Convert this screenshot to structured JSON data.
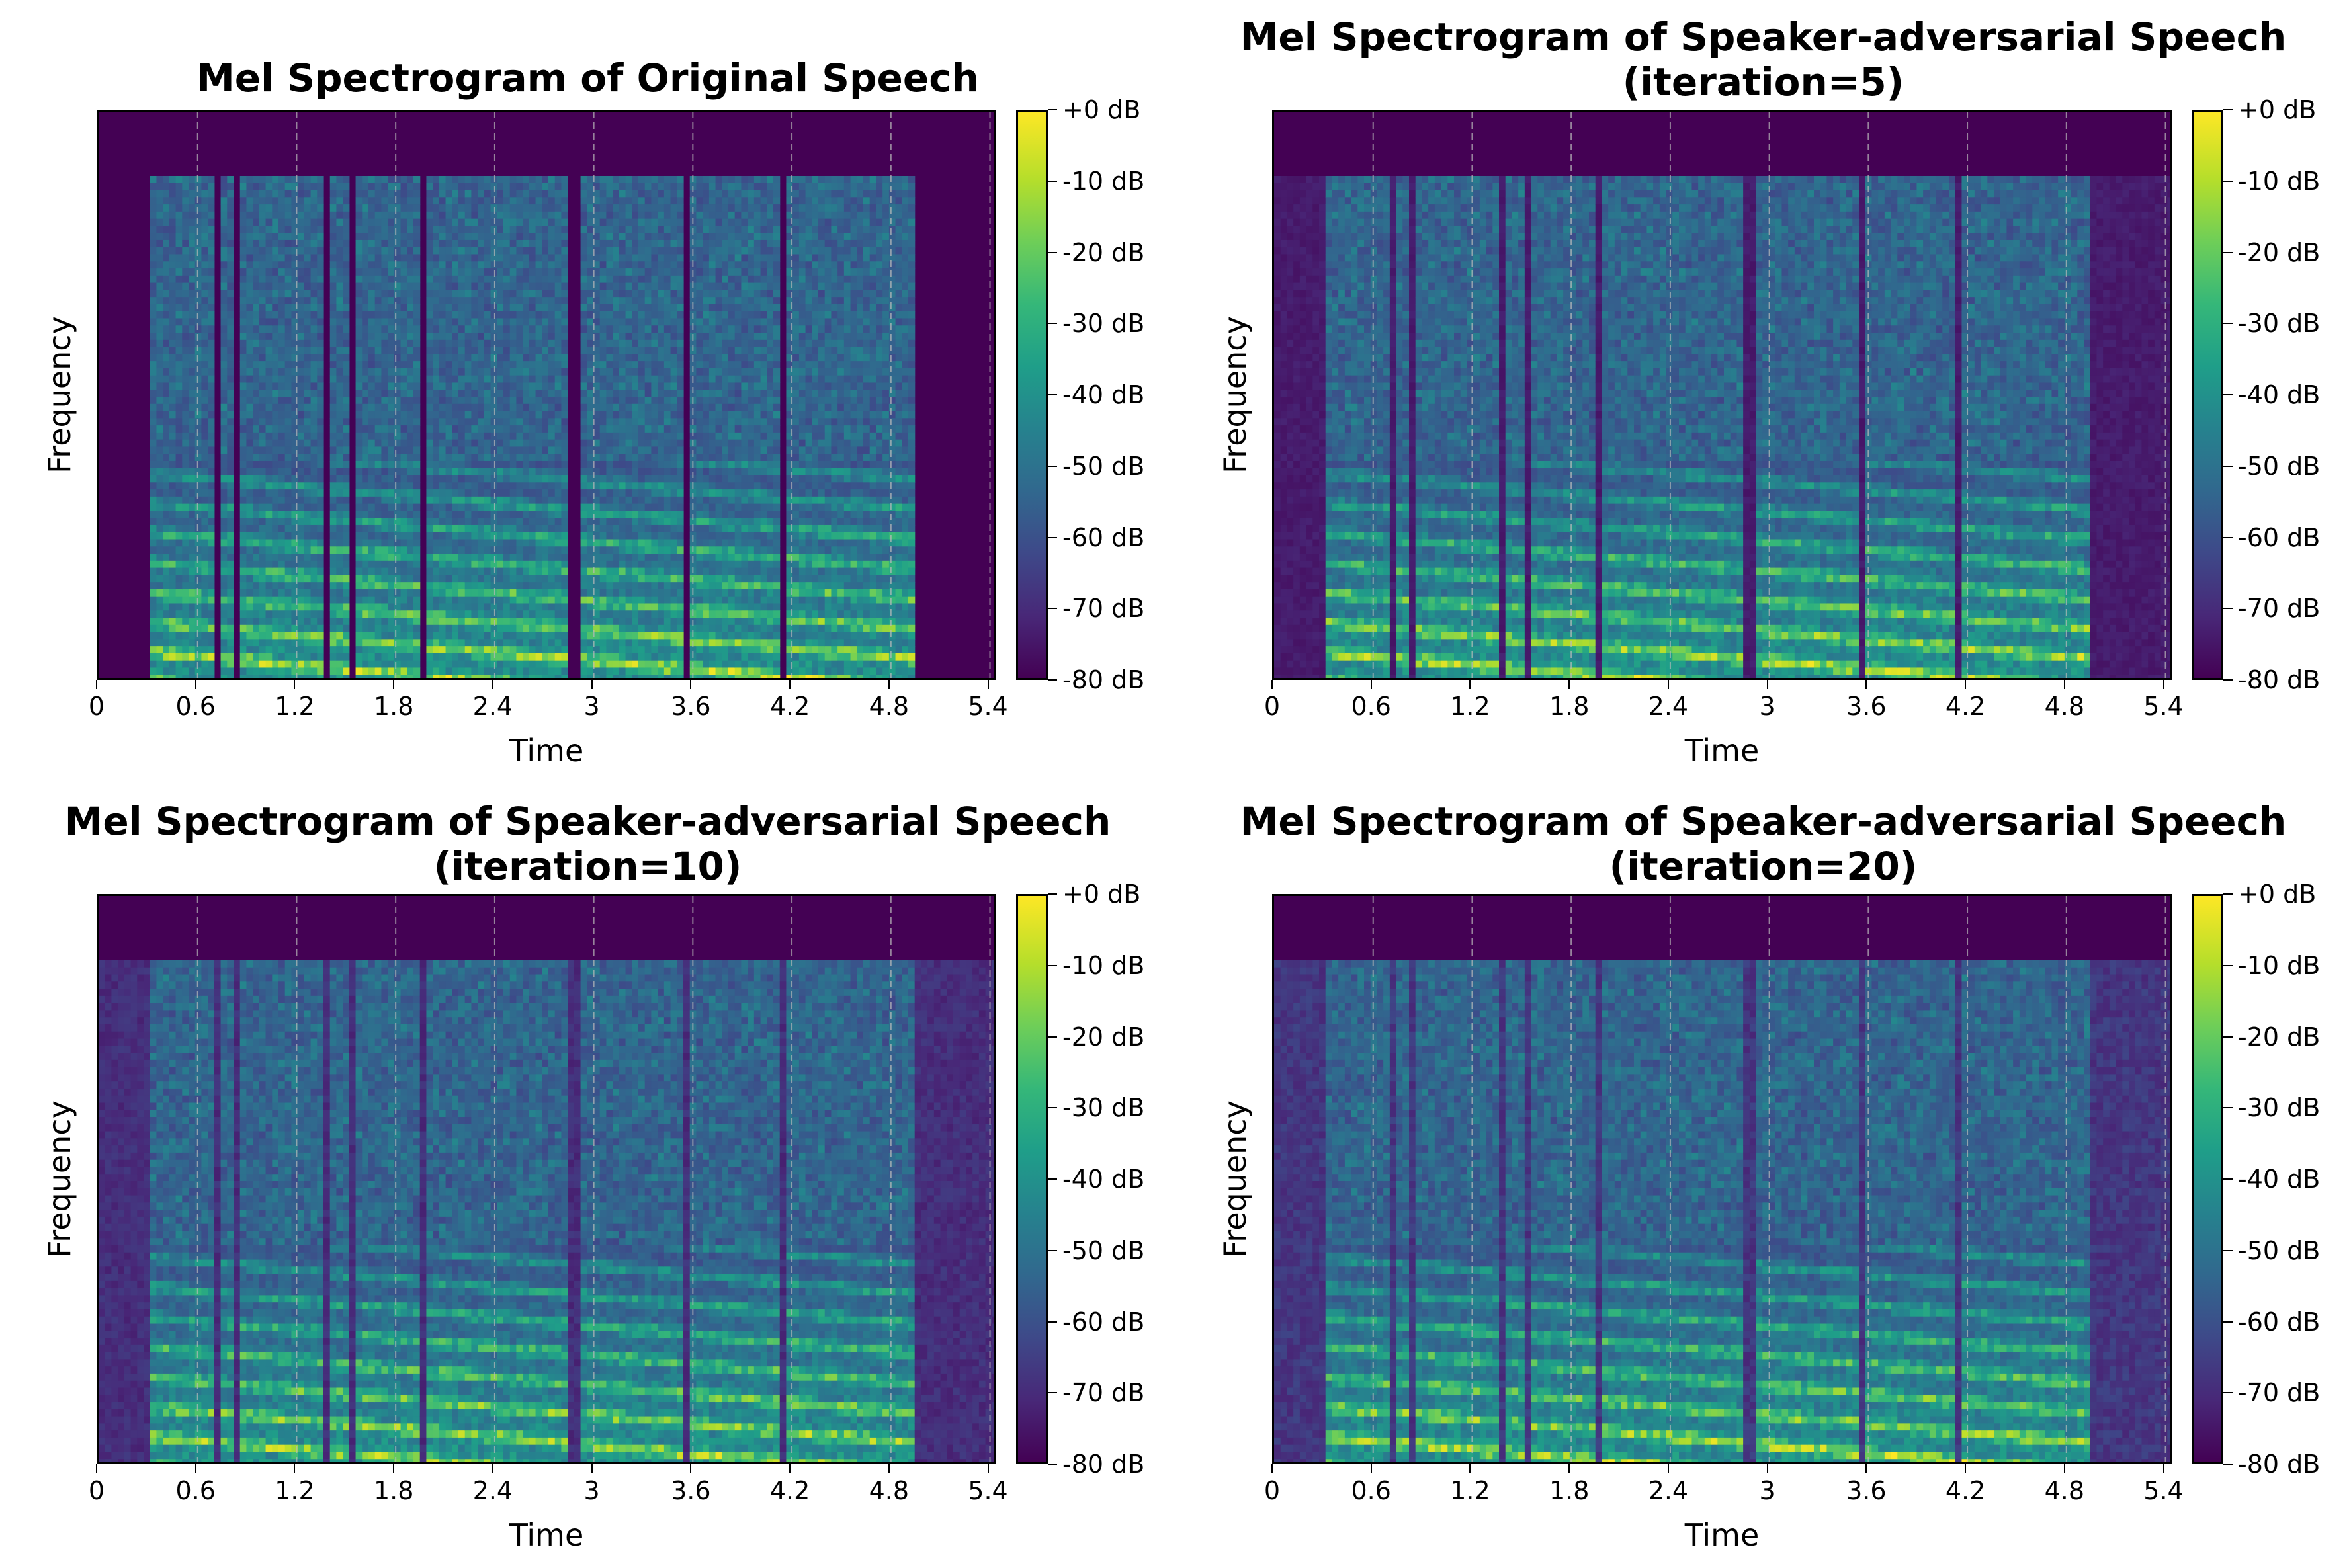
{
  "figure": {
    "xticks": [
      "0",
      "0.6",
      "1.2",
      "1.8",
      "2.4",
      "3",
      "3.6",
      "4.2",
      "4.8",
      "5.4"
    ],
    "colorbar_ticks": [
      "+0 dB",
      "-10 dB",
      "-20 dB",
      "-30 dB",
      "-40 dB",
      "-50 dB",
      "-60 dB",
      "-70 dB",
      "-80 dB"
    ],
    "xlabel": "Time",
    "ylabel": "Frequency"
  },
  "panels": [
    {
      "title": "Mel Spectrogram of Original Speech",
      "xlabel": "Time",
      "ylabel": "Frequency"
    },
    {
      "title": "Mel Spectrogram of Speaker-adversarial Speech\n(iteration=5)",
      "xlabel": "Time",
      "ylabel": "Frequency"
    },
    {
      "title": "Mel Spectrogram of Speaker-adversarial Speech\n(iteration=10)",
      "xlabel": "Time",
      "ylabel": "Frequency"
    },
    {
      "title": "Mel Spectrogram of Speaker-adversarial Speech\n(iteration=20)",
      "xlabel": "Time",
      "ylabel": "Frequency"
    }
  ],
  "chart_data": [
    {
      "type": "heatmap",
      "title": "Mel Spectrogram of Original Speech",
      "xlabel": "Time",
      "ylabel": "Frequency",
      "xlim": [
        0,
        5.45
      ],
      "xticks": [
        0,
        0.6,
        1.2,
        1.8,
        2.4,
        3,
        3.6,
        4.2,
        4.8,
        5.4
      ],
      "colorbar": {
        "min": -80,
        "max": 0,
        "unit": "dB",
        "colormap": "viridis"
      },
      "grid": "vertical dashed at x ticks",
      "speech_segments": [
        [
          0.32,
          0.72
        ],
        [
          0.74,
          0.82
        ],
        [
          0.84,
          1.38
        ],
        [
          1.4,
          1.5
        ],
        [
          1.54,
          1.95
        ],
        [
          1.98,
          2.85
        ],
        [
          2.93,
          3.3
        ],
        [
          3.32,
          3.55
        ],
        [
          3.57,
          4.12
        ],
        [
          4.18,
          4.95
        ]
      ],
      "background_noise_db": -80
    },
    {
      "type": "heatmap",
      "title": "Mel Spectrogram of Speaker-adversarial Speech (iteration=5)",
      "xlabel": "Time",
      "ylabel": "Frequency",
      "xlim": [
        0,
        5.45
      ],
      "xticks": [
        0,
        0.6,
        1.2,
        1.8,
        2.4,
        3,
        3.6,
        4.2,
        4.8,
        5.4
      ],
      "colorbar": {
        "min": -80,
        "max": 0,
        "unit": "dB",
        "colormap": "viridis"
      },
      "grid": "vertical dashed at x ticks",
      "speech_segments": [
        [
          0.32,
          0.72
        ],
        [
          0.74,
          0.82
        ],
        [
          0.84,
          1.38
        ],
        [
          1.4,
          1.5
        ],
        [
          1.54,
          1.95
        ],
        [
          1.98,
          2.85
        ],
        [
          2.93,
          3.3
        ],
        [
          3.32,
          3.55
        ],
        [
          3.57,
          4.12
        ],
        [
          4.18,
          4.95
        ]
      ],
      "background_noise_db": -72
    },
    {
      "type": "heatmap",
      "title": "Mel Spectrogram of Speaker-adversarial Speech (iteration=10)",
      "xlabel": "Time",
      "ylabel": "Frequency",
      "xlim": [
        0,
        5.45
      ],
      "xticks": [
        0,
        0.6,
        1.2,
        1.8,
        2.4,
        3,
        3.6,
        4.2,
        4.8,
        5.4
      ],
      "colorbar": {
        "min": -80,
        "max": 0,
        "unit": "dB",
        "colormap": "viridis"
      },
      "grid": "vertical dashed at x ticks",
      "speech_segments": [
        [
          0.32,
          0.72
        ],
        [
          0.74,
          0.82
        ],
        [
          0.84,
          1.38
        ],
        [
          1.4,
          1.5
        ],
        [
          1.54,
          1.95
        ],
        [
          1.98,
          2.85
        ],
        [
          2.93,
          3.3
        ],
        [
          3.32,
          3.55
        ],
        [
          3.57,
          4.12
        ],
        [
          4.18,
          4.95
        ]
      ],
      "background_noise_db": -66
    },
    {
      "type": "heatmap",
      "title": "Mel Spectrogram of Speaker-adversarial Speech (iteration=20)",
      "xlabel": "Time",
      "ylabel": "Frequency",
      "xlim": [
        0,
        5.45
      ],
      "xticks": [
        0,
        0.6,
        1.2,
        1.8,
        2.4,
        3,
        3.6,
        4.2,
        4.8,
        5.4
      ],
      "colorbar": {
        "min": -80,
        "max": 0,
        "unit": "dB",
        "colormap": "viridis"
      },
      "grid": "vertical dashed at x ticks",
      "speech_segments": [
        [
          0.32,
          0.72
        ],
        [
          0.74,
          0.82
        ],
        [
          0.84,
          1.38
        ],
        [
          1.4,
          1.5
        ],
        [
          1.54,
          1.95
        ],
        [
          1.98,
          2.85
        ],
        [
          2.93,
          3.3
        ],
        [
          3.32,
          3.55
        ],
        [
          3.57,
          4.12
        ],
        [
          4.18,
          4.95
        ]
      ],
      "background_noise_db": -63
    }
  ]
}
